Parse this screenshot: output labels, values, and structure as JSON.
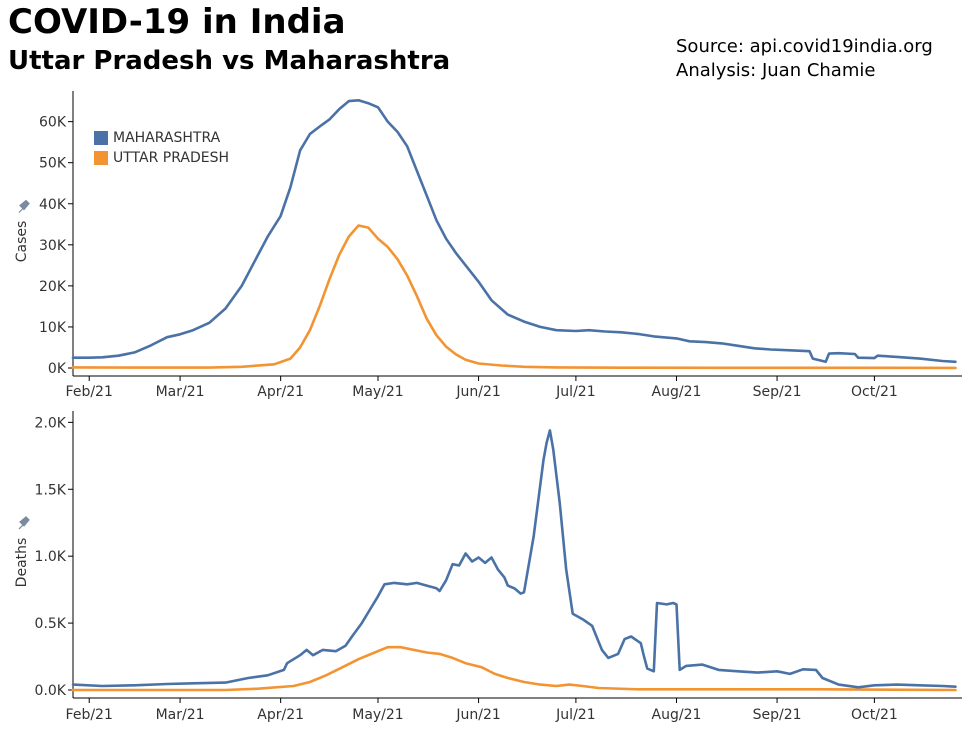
{
  "header": {
    "title": "COVID-19 in India",
    "subtitle": "Uttar Pradesh vs Maharashtra",
    "source_line": "Source: api.covid19india.org",
    "analysis_line": "Analysis:  Juan Chamie"
  },
  "colors": {
    "maharashtra": "#4a72a6",
    "uttar_pradesh": "#f39433"
  },
  "chart_data": [
    {
      "type": "line",
      "ylabel": "Cases",
      "ylabel_icon": "pin-icon",
      "ylim": [
        0,
        66000
      ],
      "yticks": [
        {
          "value": 0,
          "label": "0K"
        },
        {
          "value": 10000,
          "label": "10K"
        },
        {
          "value": 20000,
          "label": "20K"
        },
        {
          "value": 30000,
          "label": "30K"
        },
        {
          "value": 40000,
          "label": "40K"
        },
        {
          "value": 50000,
          "label": "50K"
        },
        {
          "value": 60000,
          "label": "60K"
        }
      ],
      "xlim": [
        "2021-01-27",
        "2021-10-28"
      ],
      "xticks": [
        {
          "date": "2021-02-01",
          "label": "Feb/21"
        },
        {
          "date": "2021-03-01",
          "label": "Mar/21"
        },
        {
          "date": "2021-04-01",
          "label": "Apr/21"
        },
        {
          "date": "2021-05-01",
          "label": "May/21"
        },
        {
          "date": "2021-06-01",
          "label": "Jun/21"
        },
        {
          "date": "2021-07-01",
          "label": "Jul/21"
        },
        {
          "date": "2021-08-01",
          "label": "Aug/21"
        },
        {
          "date": "2021-09-01",
          "label": "Sep/21"
        },
        {
          "date": "2021-10-01",
          "label": "Oct/21"
        }
      ],
      "legend": {
        "placement": "top-left",
        "entries": [
          "MAHARASHTRA",
          "UTTAR PRADESH"
        ]
      },
      "series": [
        {
          "name": "MAHARASHTRA",
          "color_key": "maharashtra",
          "points": [
            [
              "2021-01-27",
              2500
            ],
            [
              "2021-02-01",
              2500
            ],
            [
              "2021-02-05",
              2600
            ],
            [
              "2021-02-10",
              3000
            ],
            [
              "2021-02-15",
              3800
            ],
            [
              "2021-02-20",
              5500
            ],
            [
              "2021-02-25",
              7500
            ],
            [
              "2021-03-01",
              8200
            ],
            [
              "2021-03-05",
              9200
            ],
            [
              "2021-03-10",
              11000
            ],
            [
              "2021-03-15",
              14500
            ],
            [
              "2021-03-20",
              20000
            ],
            [
              "2021-03-25",
              27500
            ],
            [
              "2021-03-28",
              32000
            ],
            [
              "2021-04-01",
              37000
            ],
            [
              "2021-04-04",
              44000
            ],
            [
              "2021-04-07",
              53000
            ],
            [
              "2021-04-10",
              57000
            ],
            [
              "2021-04-13",
              58800
            ],
            [
              "2021-04-16",
              60500
            ],
            [
              "2021-04-19",
              63000
            ],
            [
              "2021-04-22",
              65000
            ],
            [
              "2021-04-25",
              65200
            ],
            [
              "2021-04-28",
              64500
            ],
            [
              "2021-05-01",
              63500
            ],
            [
              "2021-05-04",
              60000
            ],
            [
              "2021-05-07",
              57500
            ],
            [
              "2021-05-10",
              54000
            ],
            [
              "2021-05-13",
              48000
            ],
            [
              "2021-05-16",
              42000
            ],
            [
              "2021-05-19",
              36000
            ],
            [
              "2021-05-22",
              31500
            ],
            [
              "2021-05-25",
              28000
            ],
            [
              "2021-05-28",
              25000
            ],
            [
              "2021-06-01",
              21000
            ],
            [
              "2021-06-05",
              16500
            ],
            [
              "2021-06-10",
              13000
            ],
            [
              "2021-06-15",
              11300
            ],
            [
              "2021-06-20",
              10000
            ],
            [
              "2021-06-25",
              9200
            ],
            [
              "2021-07-01",
              9000
            ],
            [
              "2021-07-05",
              9200
            ],
            [
              "2021-07-10",
              8900
            ],
            [
              "2021-07-15",
              8700
            ],
            [
              "2021-07-20",
              8300
            ],
            [
              "2021-07-25",
              7700
            ],
            [
              "2021-08-01",
              7200
            ],
            [
              "2021-08-05",
              6500
            ],
            [
              "2021-08-10",
              6300
            ],
            [
              "2021-08-15",
              6000
            ],
            [
              "2021-08-20",
              5400
            ],
            [
              "2021-08-25",
              4800
            ],
            [
              "2021-08-30",
              4500
            ],
            [
              "2021-09-05",
              4300
            ],
            [
              "2021-09-11",
              4100
            ],
            [
              "2021-09-12",
              2300
            ],
            [
              "2021-09-16",
              1500
            ],
            [
              "2021-09-17",
              3500
            ],
            [
              "2021-09-20",
              3600
            ],
            [
              "2021-09-25",
              3400
            ],
            [
              "2021-09-26",
              2500
            ],
            [
              "2021-10-01",
              2400
            ],
            [
              "2021-10-02",
              3000
            ],
            [
              "2021-10-08",
              2700
            ],
            [
              "2021-10-15",
              2300
            ],
            [
              "2021-10-22",
              1700
            ],
            [
              "2021-10-26",
              1500
            ]
          ]
        },
        {
          "name": "UTTAR PRADESH",
          "color_key": "uttar_pradesh",
          "points": [
            [
              "2021-01-27",
              150
            ],
            [
              "2021-02-15",
              100
            ],
            [
              "2021-03-10",
              100
            ],
            [
              "2021-03-20",
              300
            ],
            [
              "2021-03-30",
              900
            ],
            [
              "2021-04-04",
              2300
            ],
            [
              "2021-04-07",
              5000
            ],
            [
              "2021-04-10",
              9200
            ],
            [
              "2021-04-13",
              15000
            ],
            [
              "2021-04-16",
              21500
            ],
            [
              "2021-04-19",
              27500
            ],
            [
              "2021-04-22",
              32000
            ],
            [
              "2021-04-25",
              34700
            ],
            [
              "2021-04-28",
              34200
            ],
            [
              "2021-05-01",
              31500
            ],
            [
              "2021-05-04",
              29500
            ],
            [
              "2021-05-07",
              26500
            ],
            [
              "2021-05-10",
              22500
            ],
            [
              "2021-05-13",
              17500
            ],
            [
              "2021-05-16",
              12000
            ],
            [
              "2021-05-19",
              8000
            ],
            [
              "2021-05-22",
              5200
            ],
            [
              "2021-05-25",
              3300
            ],
            [
              "2021-05-28",
              2000
            ],
            [
              "2021-06-01",
              1100
            ],
            [
              "2021-06-08",
              600
            ],
            [
              "2021-06-15",
              300
            ],
            [
              "2021-06-25",
              150
            ],
            [
              "2021-07-15",
              80
            ],
            [
              "2021-08-15",
              50
            ],
            [
              "2021-09-15",
              40
            ],
            [
              "2021-10-26",
              30
            ]
          ]
        }
      ]
    },
    {
      "type": "line",
      "ylabel": "Deaths",
      "ylabel_icon": "pin-icon",
      "ylim": [
        0,
        2040
      ],
      "yticks": [
        {
          "value": 0,
          "label": "0.0K"
        },
        {
          "value": 500,
          "label": "0.5K"
        },
        {
          "value": 1000,
          "label": "1.0K"
        },
        {
          "value": 1500,
          "label": "1.5K"
        },
        {
          "value": 2000,
          "label": "2.0K"
        }
      ],
      "xlim": [
        "2021-01-27",
        "2021-10-28"
      ],
      "xticks": [
        {
          "date": "2021-02-01",
          "label": "Feb/21"
        },
        {
          "date": "2021-03-01",
          "label": "Mar/21"
        },
        {
          "date": "2021-04-01",
          "label": "Apr/21"
        },
        {
          "date": "2021-05-01",
          "label": "May/21"
        },
        {
          "date": "2021-06-01",
          "label": "Jun/21"
        },
        {
          "date": "2021-07-01",
          "label": "Jul/21"
        },
        {
          "date": "2021-08-01",
          "label": "Aug/21"
        },
        {
          "date": "2021-09-01",
          "label": "Sep/21"
        },
        {
          "date": "2021-10-01",
          "label": "Oct/21"
        }
      ],
      "series": [
        {
          "name": "MAHARASHTRA",
          "color_key": "maharashtra",
          "points": [
            [
              "2021-01-27",
              40
            ],
            [
              "2021-02-05",
              30
            ],
            [
              "2021-02-15",
              35
            ],
            [
              "2021-02-25",
              45
            ],
            [
              "2021-03-05",
              50
            ],
            [
              "2021-03-15",
              55
            ],
            [
              "2021-03-22",
              90
            ],
            [
              "2021-03-28",
              110
            ],
            [
              "2021-04-02",
              150
            ],
            [
              "2021-04-03",
              200
            ],
            [
              "2021-04-07",
              260
            ],
            [
              "2021-04-09",
              300
            ],
            [
              "2021-04-11",
              260
            ],
            [
              "2021-04-14",
              300
            ],
            [
              "2021-04-18",
              290
            ],
            [
              "2021-04-21",
              330
            ],
            [
              "2021-04-23",
              400
            ],
            [
              "2021-04-26",
              500
            ],
            [
              "2021-04-29",
              620
            ],
            [
              "2021-05-01",
              700
            ],
            [
              "2021-05-03",
              790
            ],
            [
              "2021-05-06",
              800
            ],
            [
              "2021-05-10",
              790
            ],
            [
              "2021-05-13",
              800
            ],
            [
              "2021-05-16",
              780
            ],
            [
              "2021-05-19",
              760
            ],
            [
              "2021-05-20",
              740
            ],
            [
              "2021-05-22",
              820
            ],
            [
              "2021-05-24",
              940
            ],
            [
              "2021-05-26",
              930
            ],
            [
              "2021-05-28",
              1020
            ],
            [
              "2021-05-30",
              960
            ],
            [
              "2021-06-01",
              990
            ],
            [
              "2021-06-03",
              950
            ],
            [
              "2021-06-05",
              990
            ],
            [
              "2021-06-07",
              900
            ],
            [
              "2021-06-09",
              840
            ],
            [
              "2021-06-10",
              780
            ],
            [
              "2021-06-12",
              760
            ],
            [
              "2021-06-14",
              720
            ],
            [
              "2021-06-15",
              730
            ],
            [
              "2021-06-18",
              1150
            ],
            [
              "2021-06-21",
              1720
            ],
            [
              "2021-06-22",
              1850
            ],
            [
              "2021-06-23",
              1940
            ],
            [
              "2021-06-24",
              1800
            ],
            [
              "2021-06-26",
              1400
            ],
            [
              "2021-06-28",
              900
            ],
            [
              "2021-06-30",
              570
            ],
            [
              "2021-07-03",
              530
            ],
            [
              "2021-07-06",
              480
            ],
            [
              "2021-07-09",
              300
            ],
            [
              "2021-07-11",
              240
            ],
            [
              "2021-07-14",
              270
            ],
            [
              "2021-07-16",
              380
            ],
            [
              "2021-07-18",
              400
            ],
            [
              "2021-07-21",
              350
            ],
            [
              "2021-07-22",
              250
            ],
            [
              "2021-07-23",
              160
            ],
            [
              "2021-07-25",
              140
            ],
            [
              "2021-07-26",
              650
            ],
            [
              "2021-07-29",
              640
            ],
            [
              "2021-07-31",
              650
            ],
            [
              "2021-08-01",
              640
            ],
            [
              "2021-08-02",
              150
            ],
            [
              "2021-08-04",
              180
            ],
            [
              "2021-08-09",
              190
            ],
            [
              "2021-08-14",
              150
            ],
            [
              "2021-08-20",
              140
            ],
            [
              "2021-08-26",
              130
            ],
            [
              "2021-09-01",
              140
            ],
            [
              "2021-09-05",
              120
            ],
            [
              "2021-09-09",
              155
            ],
            [
              "2021-09-13",
              150
            ],
            [
              "2021-09-15",
              90
            ],
            [
              "2021-09-20",
              40
            ],
            [
              "2021-09-26",
              20
            ],
            [
              "2021-10-01",
              35
            ],
            [
              "2021-10-08",
              40
            ],
            [
              "2021-10-15",
              35
            ],
            [
              "2021-10-22",
              30
            ],
            [
              "2021-10-26",
              25
            ]
          ]
        },
        {
          "name": "UTTAR PRADESH",
          "color_key": "uttar_pradesh",
          "points": [
            [
              "2021-01-27",
              0
            ],
            [
              "2021-03-15",
              0
            ],
            [
              "2021-03-25",
              10
            ],
            [
              "2021-04-05",
              30
            ],
            [
              "2021-04-10",
              60
            ],
            [
              "2021-04-15",
              110
            ],
            [
              "2021-04-20",
              170
            ],
            [
              "2021-04-25",
              230
            ],
            [
              "2021-04-30",
              280
            ],
            [
              "2021-05-04",
              320
            ],
            [
              "2021-05-08",
              320
            ],
            [
              "2021-05-12",
              300
            ],
            [
              "2021-05-16",
              280
            ],
            [
              "2021-05-20",
              270
            ],
            [
              "2021-05-24",
              240
            ],
            [
              "2021-05-28",
              200
            ],
            [
              "2021-06-02",
              170
            ],
            [
              "2021-06-06",
              120
            ],
            [
              "2021-06-10",
              90
            ],
            [
              "2021-06-15",
              60
            ],
            [
              "2021-06-20",
              40
            ],
            [
              "2021-06-25",
              30
            ],
            [
              "2021-06-29",
              40
            ],
            [
              "2021-07-03",
              30
            ],
            [
              "2021-07-08",
              15
            ],
            [
              "2021-07-20",
              5
            ],
            [
              "2021-08-10",
              5
            ],
            [
              "2021-09-15",
              5
            ],
            [
              "2021-10-26",
              0
            ]
          ]
        }
      ]
    }
  ]
}
